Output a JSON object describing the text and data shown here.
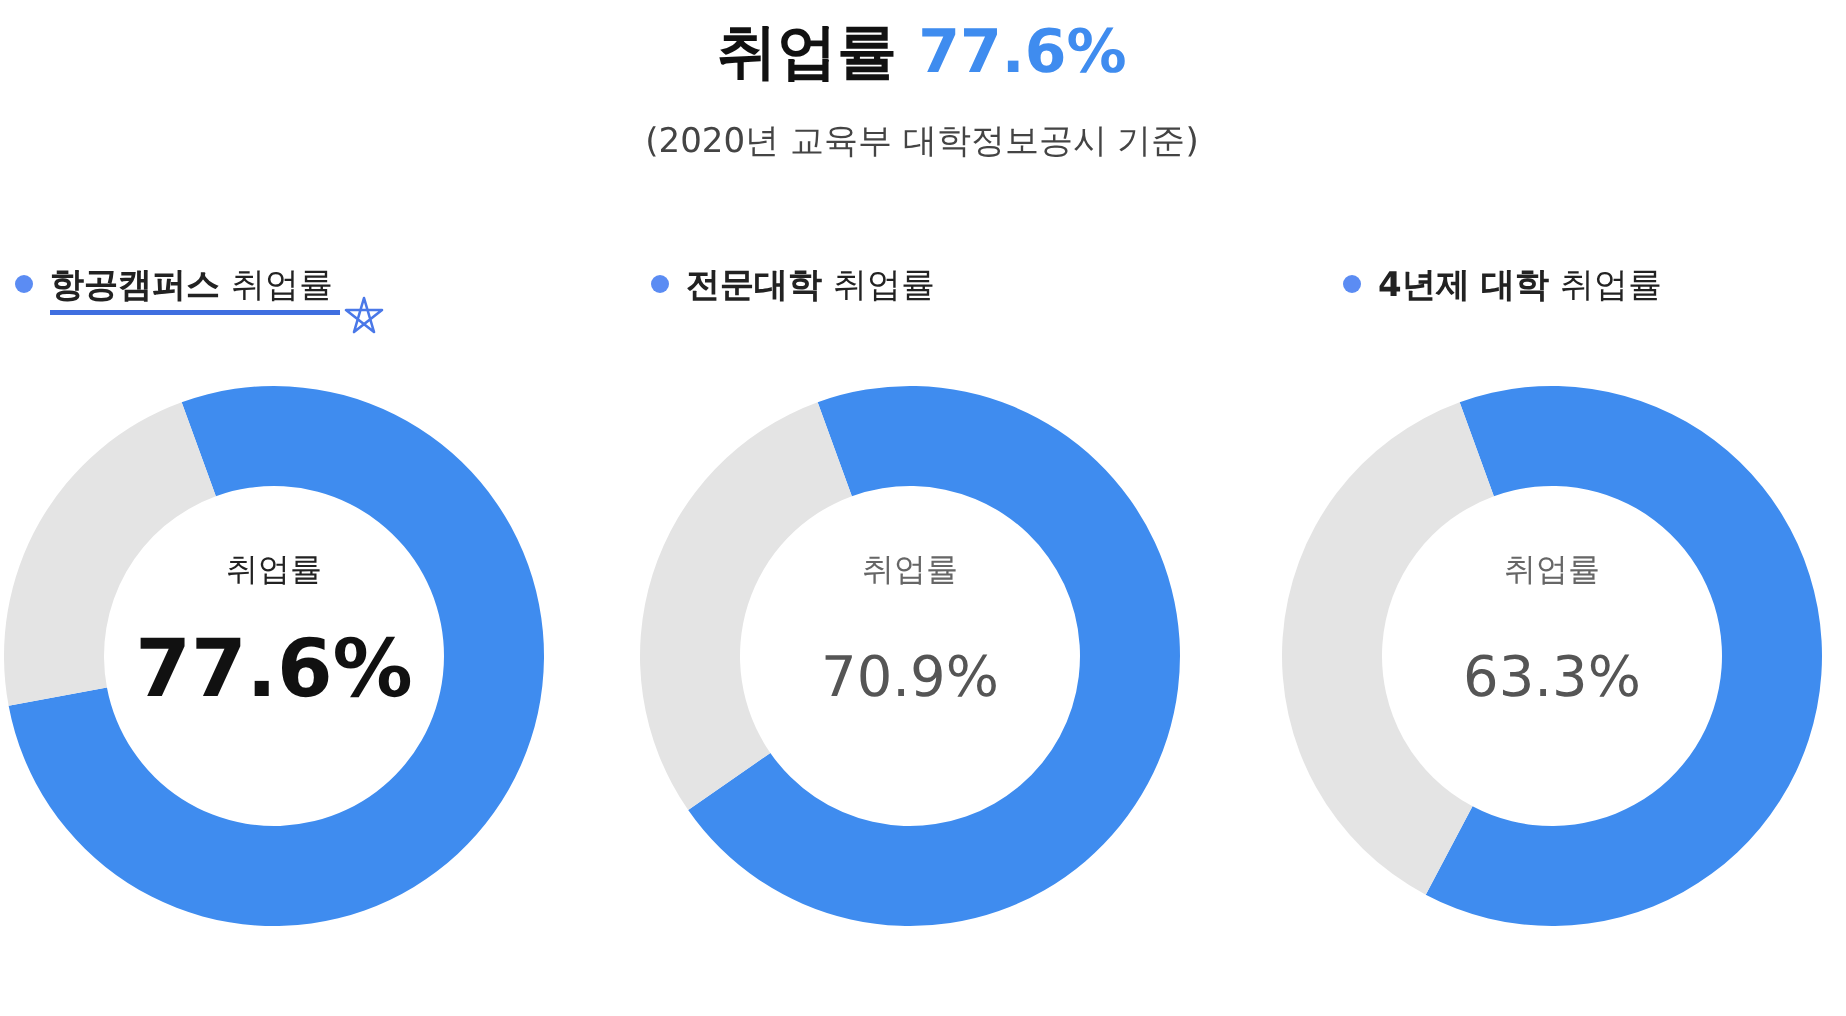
{
  "chart_data": [
    {
      "type": "other",
      "title": "취업률 77.6%",
      "subtitle": "(2020년 교육부 대학정보공시 기준)"
    },
    {
      "type": "donut",
      "title": "항공캠퍼스 취업률",
      "categories": [
        null,
        null
      ],
      "values": [
        77.6,
        22.4
      ],
      "colors": [
        "#3f8cef",
        "#e4e4e4"
      ],
      "value_labels": [
        "77.6%",
        null
      ],
      "annotations": [
        "취업률"
      ]
    },
    {
      "type": "donut",
      "title": "전문대학 취업률",
      "categories": [
        null,
        null
      ],
      "values": [
        70.9,
        29.1
      ],
      "colors": [
        "#3f8cef",
        "#e4e4e4"
      ],
      "value_labels": [
        "70.9%",
        null
      ],
      "annotations": [
        "취업률"
      ]
    },
    {
      "type": "donut",
      "title": "4년제 대학 취업률",
      "categories": [
        null,
        null
      ],
      "values": [
        63.3,
        36.7
      ],
      "colors": [
        "#3f8cef",
        "#e4e4e4"
      ],
      "value_labels": [
        "63.3%",
        null
      ],
      "annotations": [
        "취업률"
      ]
    }
  ]
}
